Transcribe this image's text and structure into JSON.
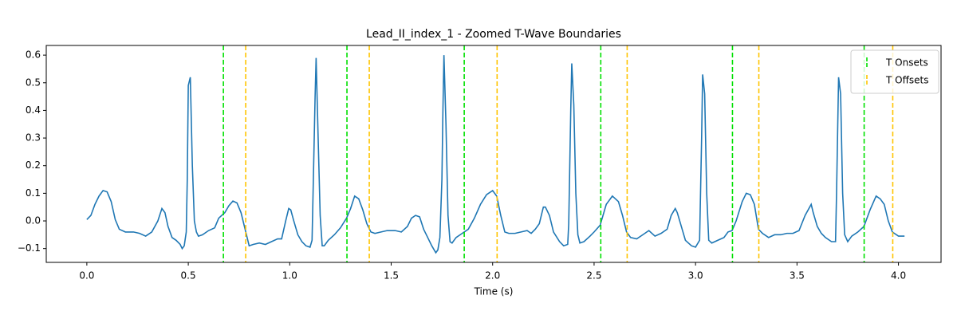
{
  "chart_data": {
    "type": "line",
    "title": "Lead_II_index_1 - Zoomed T-Wave Boundaries",
    "xlabel": "Time (s)",
    "x": [
      0.0,
      0.02,
      0.04,
      0.06,
      0.08,
      0.1,
      0.12,
      0.14,
      0.16,
      0.19,
      0.23,
      0.26,
      0.29,
      0.32,
      0.35,
      0.37,
      0.385,
      0.4,
      0.42,
      0.44,
      0.46,
      0.47,
      0.48,
      0.49,
      0.495,
      0.5,
      0.51,
      0.52,
      0.53,
      0.54,
      0.55,
      0.57,
      0.6,
      0.63,
      0.65,
      0.68,
      0.7,
      0.72,
      0.74,
      0.76,
      0.78,
      0.8,
      0.82,
      0.85,
      0.88,
      0.91,
      0.94,
      0.96,
      0.98,
      0.995,
      1.005,
      1.02,
      1.04,
      1.06,
      1.08,
      1.1,
      1.11,
      1.115,
      1.125,
      1.13,
      1.14,
      1.15,
      1.16,
      1.17,
      1.19,
      1.22,
      1.25,
      1.28,
      1.3,
      1.32,
      1.34,
      1.36,
      1.38,
      1.4,
      1.42,
      1.45,
      1.48,
      1.52,
      1.55,
      1.58,
      1.6,
      1.62,
      1.64,
      1.66,
      1.68,
      1.7,
      1.72,
      1.73,
      1.74,
      1.75,
      1.755,
      1.76,
      1.77,
      1.78,
      1.79,
      1.8,
      1.82,
      1.85,
      1.88,
      1.91,
      1.94,
      1.97,
      2.0,
      2.02,
      2.04,
      2.06,
      2.08,
      2.11,
      2.14,
      2.17,
      2.19,
      2.21,
      2.23,
      2.25,
      2.26,
      2.28,
      2.3,
      2.33,
      2.35,
      2.37,
      2.375,
      2.385,
      2.39,
      2.4,
      2.41,
      2.42,
      2.43,
      2.45,
      2.48,
      2.5,
      2.53,
      2.56,
      2.59,
      2.62,
      2.64,
      2.66,
      2.68,
      2.71,
      2.74,
      2.77,
      2.8,
      2.83,
      2.86,
      2.88,
      2.9,
      2.91,
      2.93,
      2.95,
      2.98,
      3.0,
      3.02,
      3.03,
      3.035,
      3.045,
      3.055,
      3.065,
      3.08,
      3.11,
      3.14,
      3.16,
      3.18,
      3.2,
      3.23,
      3.25,
      3.27,
      3.29,
      3.31,
      3.33,
      3.36,
      3.39,
      3.42,
      3.45,
      3.48,
      3.51,
      3.54,
      3.57,
      3.58,
      3.6,
      3.62,
      3.64,
      3.67,
      3.69,
      3.695,
      3.705,
      3.715,
      3.725,
      3.735,
      3.75,
      3.77,
      3.8,
      3.83,
      3.86,
      3.89,
      3.91,
      3.93,
      3.95,
      3.97,
      4.0,
      4.03
    ],
    "series": [
      {
        "color": "#1f77b4",
        "values": [
          0.005,
          0.02,
          0.06,
          0.09,
          0.11,
          0.105,
          0.07,
          0.005,
          -0.03,
          -0.04,
          -0.04,
          -0.045,
          -0.055,
          -0.04,
          0.0,
          0.045,
          0.03,
          -0.02,
          -0.06,
          -0.07,
          -0.085,
          -0.1,
          -0.09,
          -0.04,
          0.15,
          0.49,
          0.52,
          0.2,
          0.0,
          -0.04,
          -0.055,
          -0.05,
          -0.035,
          -0.025,
          0.01,
          0.03,
          0.055,
          0.072,
          0.065,
          0.03,
          -0.03,
          -0.09,
          -0.085,
          -0.08,
          -0.085,
          -0.075,
          -0.065,
          -0.065,
          0.0,
          0.045,
          0.04,
          0.0,
          -0.05,
          -0.075,
          -0.09,
          -0.095,
          -0.07,
          0.1,
          0.45,
          0.59,
          0.3,
          0.02,
          -0.09,
          -0.09,
          -0.07,
          -0.05,
          -0.025,
          0.01,
          0.045,
          0.09,
          0.08,
          0.04,
          -0.01,
          -0.04,
          -0.045,
          -0.04,
          -0.035,
          -0.035,
          -0.04,
          -0.02,
          0.01,
          0.02,
          0.015,
          -0.03,
          -0.06,
          -0.09,
          -0.115,
          -0.105,
          -0.06,
          0.15,
          0.4,
          0.6,
          0.35,
          0.02,
          -0.075,
          -0.08,
          -0.06,
          -0.045,
          -0.03,
          0.01,
          0.06,
          0.095,
          0.11,
          0.09,
          0.02,
          -0.04,
          -0.045,
          -0.045,
          -0.04,
          -0.035,
          -0.045,
          -0.03,
          -0.01,
          0.05,
          0.05,
          0.02,
          -0.04,
          -0.075,
          -0.09,
          -0.085,
          -0.01,
          0.4,
          0.57,
          0.42,
          0.1,
          -0.05,
          -0.08,
          -0.075,
          -0.055,
          -0.04,
          -0.015,
          0.06,
          0.09,
          0.07,
          0.02,
          -0.04,
          -0.06,
          -0.065,
          -0.05,
          -0.035,
          -0.055,
          -0.045,
          -0.03,
          0.02,
          0.045,
          0.03,
          -0.02,
          -0.07,
          -0.09,
          -0.095,
          -0.07,
          0.3,
          0.53,
          0.46,
          0.1,
          -0.07,
          -0.08,
          -0.07,
          -0.06,
          -0.04,
          -0.035,
          0.0,
          0.07,
          0.1,
          0.095,
          0.06,
          -0.03,
          -0.045,
          -0.06,
          -0.05,
          -0.05,
          -0.045,
          -0.045,
          -0.035,
          0.02,
          0.06,
          0.03,
          -0.02,
          -0.045,
          -0.06,
          -0.075,
          -0.075,
          0.1,
          0.52,
          0.46,
          0.1,
          -0.05,
          -0.075,
          -0.055,
          -0.04,
          -0.02,
          0.04,
          0.09,
          0.08,
          0.06,
          0.0,
          -0.04,
          -0.055,
          -0.055
        ]
      }
    ],
    "vlines": [
      {
        "name": "T Onsets",
        "color": "#00e000",
        "x": [
          0.673,
          1.282,
          1.86,
          2.533,
          3.182,
          3.831
        ]
      },
      {
        "name": "T Offsets",
        "color": "#ffc400",
        "x": [
          0.783,
          1.392,
          2.022,
          2.663,
          3.312,
          3.972
        ]
      }
    ],
    "xlim": [
      -0.2,
      4.21
    ],
    "ylim": [
      -0.15,
      0.635
    ],
    "xticks": [
      {
        "value": 0,
        "label": "0.0"
      },
      0.5,
      {
        "value": 1,
        "label": "1.0"
      },
      1.5,
      {
        "value": 2,
        "label": "2.0"
      },
      2.5,
      {
        "value": 3,
        "label": "3.0"
      },
      3.5,
      {
        "value": 4,
        "label": "4.0"
      }
    ],
    "yticks": [
      {
        "value": -0.1,
        "label": "−0.1"
      },
      {
        "value": 0,
        "label": "0.0"
      },
      0.1,
      0.2,
      0.3,
      0.4,
      0.5,
      0.6
    ],
    "legend": "upper right"
  }
}
